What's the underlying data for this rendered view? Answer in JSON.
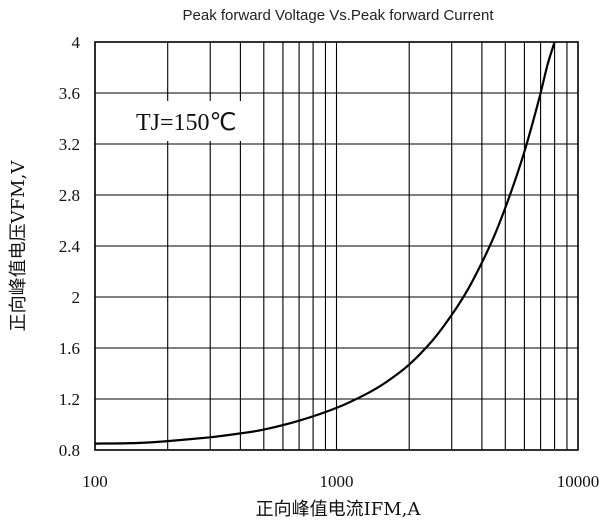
{
  "chart_data": {
    "type": "line",
    "title": "Peak forward Voltage Vs.Peak forward Current",
    "xlabel": "正向峰值电流IFM,A",
    "ylabel": "正向峰值电压VFM,V",
    "x_scale": "log",
    "xlim": [
      100,
      10000
    ],
    "ylim": [
      0.8,
      4
    ],
    "x_ticks": [
      "100",
      "1000",
      "10000"
    ],
    "y_ticks": [
      "0.8",
      "1.2",
      "1.6",
      "2",
      "2.4",
      "2.8",
      "3.2",
      "3.6",
      "4"
    ],
    "grid": true,
    "annotation": "TJ=150℃",
    "series": [
      {
        "x": [
          100,
          150,
          200,
          300,
          400,
          500,
          700,
          1000,
          1300,
          1600,
          2000,
          2500,
          3000,
          3500,
          4000,
          4500,
          5000,
          5500,
          6000,
          6500,
          7000,
          7500,
          8000
        ],
        "y": [
          0.85,
          0.855,
          0.87,
          0.9,
          0.93,
          0.96,
          1.03,
          1.13,
          1.23,
          1.33,
          1.47,
          1.66,
          1.86,
          2.06,
          2.27,
          2.48,
          2.7,
          2.92,
          3.14,
          3.37,
          3.6,
          3.83,
          4.0
        ]
      }
    ]
  }
}
